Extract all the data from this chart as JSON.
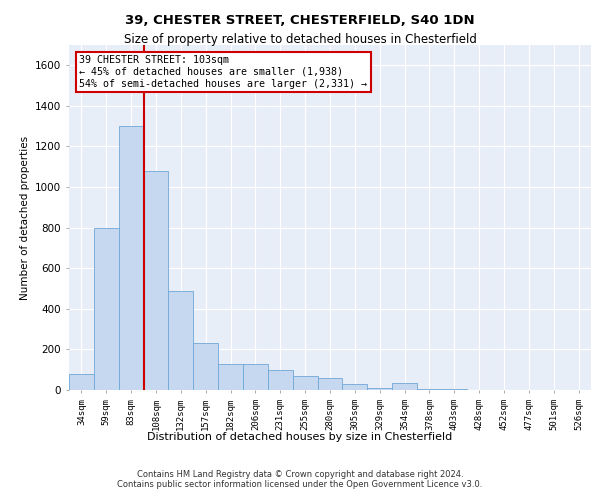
{
  "title1": "39, CHESTER STREET, CHESTERFIELD, S40 1DN",
  "title2": "Size of property relative to detached houses in Chesterfield",
  "xlabel": "Distribution of detached houses by size in Chesterfield",
  "ylabel": "Number of detached properties",
  "bar_color": "#c5d8f0",
  "bar_edge_color": "#6ea8d8",
  "background_color": "#e8eef8",
  "grid_color": "#ffffff",
  "annotation_line_color": "#cc0000",
  "annotation_text": "39 CHESTER STREET: 103sqm\n← 45% of detached houses are smaller (1,938)\n54% of semi-detached houses are larger (2,331) →",
  "footer_text": "Contains HM Land Registry data © Crown copyright and database right 2024.\nContains public sector information licensed under the Open Government Licence v3.0.",
  "bin_labels": [
    "34sqm",
    "59sqm",
    "83sqm",
    "108sqm",
    "132sqm",
    "157sqm",
    "182sqm",
    "206sqm",
    "231sqm",
    "255sqm",
    "280sqm",
    "305sqm",
    "329sqm",
    "354sqm",
    "378sqm",
    "403sqm",
    "428sqm",
    "452sqm",
    "477sqm",
    "501sqm",
    "526sqm"
  ],
  "counts": [
    80,
    800,
    1300,
    1080,
    490,
    230,
    130,
    130,
    100,
    70,
    60,
    30,
    10,
    35,
    5,
    5,
    0,
    0,
    0,
    0,
    0
  ],
  "ylim": [
    0,
    1700
  ],
  "yticks": [
    0,
    200,
    400,
    600,
    800,
    1000,
    1200,
    1400,
    1600
  ],
  "red_line_x": 2.5
}
